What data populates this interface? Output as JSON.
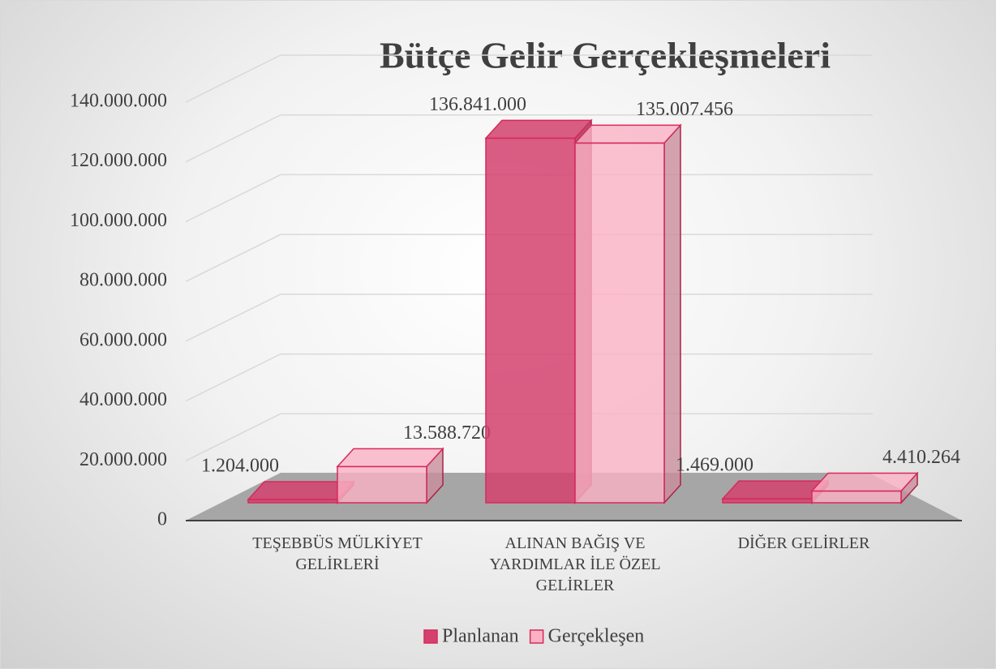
{
  "chart_data": {
    "type": "bar3d",
    "title": "Bütçe Gelir Gerçekleşmeleri",
    "categories": [
      "TEŞEBBÜS MÜLKİYET GELİRLERİ",
      "ALINAN BAĞIŞ VE YARDIMLAR İLE ÖZEL GELİRLER",
      "DİĞER GELİRLER"
    ],
    "series": [
      {
        "name": "Planlanan",
        "color": "#d4416f",
        "values": [
          1204000,
          136841000,
          1469000
        ],
        "value_labels": [
          "1.204.000",
          "136.841.000",
          "1.469.000"
        ]
      },
      {
        "name": "Gerçekleşen",
        "color": "#fbb1c4",
        "values": [
          13588720,
          135007456,
          4410264
        ],
        "value_labels": [
          "13.588.720",
          "135.007.456",
          "4.410.264"
        ]
      }
    ],
    "ylim": [
      0,
      140000000
    ],
    "yticks": [
      0,
      {
        "value": 20000000,
        "label": "20.000.000"
      },
      {
        "value": 40000000,
        "label": "40.000.000"
      },
      {
        "value": 60000000,
        "label": "60.000.000"
      },
      {
        "value": 80000000,
        "label": "80.000.000"
      },
      {
        "value": 100000000,
        "label": "100.000.000"
      },
      {
        "value": 120000000,
        "label": "120.000.000"
      },
      {
        "value": 140000000,
        "label": "140.000.000"
      }
    ],
    "grid": true,
    "legend": "bottom"
  }
}
